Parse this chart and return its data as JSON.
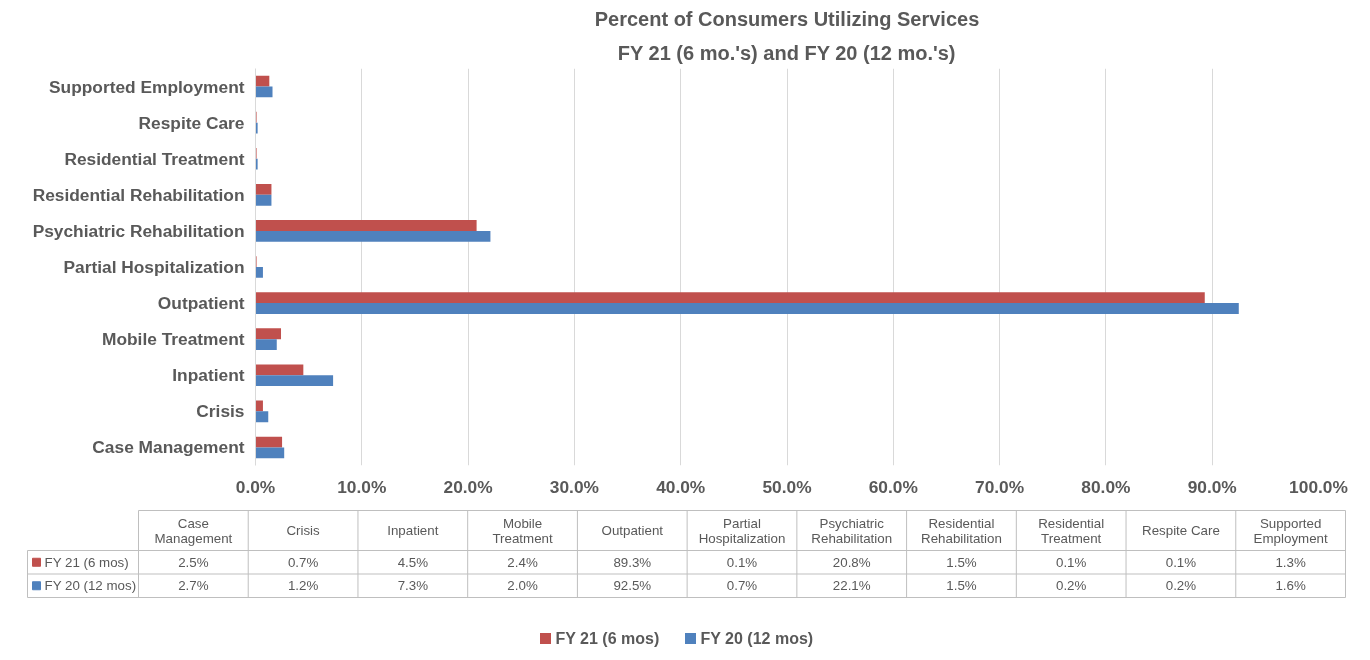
{
  "chart_data": [
    {
      "type": "bar",
      "orientation": "horizontal",
      "title": "Percent of Consumers Utilizing Services",
      "subtitle": "FY 21 (6 mo.'s) and FY 20 (12 mo.'s)",
      "categories": [
        "Supported Employment",
        "Respite Care",
        "Residential Treatment",
        "Residential Rehabilitation",
        "Psychiatric Rehabilitation",
        "Partial Hospitalization",
        "Outpatient",
        "Mobile Treatment",
        "Inpatient",
        "Crisis",
        "Case Management"
      ],
      "series": [
        {
          "name": "FY 21 (6 mos)",
          "color": "#c0504d",
          "values": [
            1.3,
            0.1,
            0.1,
            1.5,
            20.8,
            0.1,
            89.3,
            2.4,
            4.5,
            0.7,
            2.5
          ]
        },
        {
          "name": "FY 20 (12 mos)",
          "color": "#4f81bd",
          "values": [
            1.6,
            0.2,
            0.2,
            1.5,
            22.1,
            0.7,
            92.5,
            2.0,
            7.3,
            1.2,
            2.7
          ]
        }
      ],
      "xlim": [
        0,
        100
      ],
      "xticks": [
        {
          "value": 0,
          "label": "0.0%"
        },
        {
          "value": 10,
          "label": "10.0%"
        },
        {
          "value": 20,
          "label": "20.0%"
        },
        {
          "value": 30,
          "label": "30.0%"
        },
        {
          "value": 40,
          "label": "40.0%"
        },
        {
          "value": 50,
          "label": "50.0%"
        },
        {
          "value": 60,
          "label": "60.0%"
        },
        {
          "value": 70,
          "label": "70.0%"
        },
        {
          "value": 80,
          "label": "80.0%"
        },
        {
          "value": 90,
          "label": "90.0%"
        },
        {
          "value": 100,
          "label": "100.0%"
        }
      ],
      "grid": "x",
      "legend": "bottom"
    },
    {
      "type": "other",
      "categories": [
        "Case Management",
        "Crisis",
        "Inpatient",
        "Mobile Treatment",
        "Outpatient",
        "Partial Hospitalization",
        "Psychiatric Rehabilitation",
        "Residential Rehabilitation",
        "Residential Treatment",
        "Respite Care",
        "Supported Employment"
      ],
      "series": [
        {
          "name": "FY 21 (6 mos)",
          "color": "#c0504d",
          "values": [
            2.5,
            0.7,
            4.5,
            2.4,
            89.3,
            0.1,
            20.8,
            1.5,
            0.1,
            0.1,
            1.3
          ],
          "value_labels": [
            "2.5%",
            "0.7%",
            "4.5%",
            "2.4%",
            "89.3%",
            "0.1%",
            "20.8%",
            "1.5%",
            "0.1%",
            "0.1%",
            "1.3%"
          ]
        },
        {
          "name": "FY 20 (12 mos)",
          "color": "#4f81bd",
          "values": [
            2.7,
            1.2,
            7.3,
            2.0,
            92.5,
            0.7,
            22.1,
            1.5,
            0.2,
            0.2,
            1.6
          ],
          "value_labels": [
            "2.7%",
            "1.2%",
            "7.3%",
            "2.0%",
            "92.5%",
            "0.7%",
            "22.1%",
            "1.5%",
            "0.2%",
            "0.2%",
            "1.6%"
          ]
        }
      ]
    }
  ]
}
